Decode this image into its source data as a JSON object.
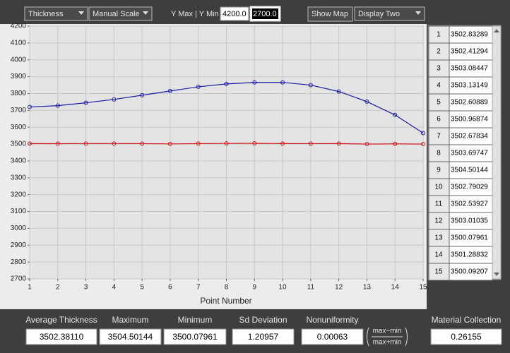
{
  "toolbar": {
    "parameter": "Thickness",
    "scale_mode": "Manual Scale",
    "y_range_label": "Y Max | Y Min",
    "y_max": "4200.0",
    "y_min": "2700.0",
    "show_map": "Show Map",
    "display": "Display Two"
  },
  "chart_data": {
    "type": "line",
    "xlabel": "Point Number",
    "x": [
      1,
      2,
      3,
      4,
      5,
      6,
      7,
      8,
      9,
      10,
      11,
      12,
      13,
      14,
      15
    ],
    "xlim": [
      1,
      15
    ],
    "xticks": [
      1,
      2,
      3,
      4,
      5,
      6,
      7,
      8,
      9,
      10,
      11,
      12,
      13,
      14,
      15
    ],
    "ylim": [
      2700,
      4200
    ],
    "yticks": [
      2700,
      2800,
      2900,
      3000,
      3100,
      3200,
      3300,
      3400,
      3500,
      3600,
      3700,
      3800,
      3900,
      4000,
      4100,
      4200
    ],
    "grid": true,
    "series": [
      {
        "color": "#1a1aa8",
        "values": [
          3720,
          3728,
          3745,
          3765,
          3790,
          3815,
          3840,
          3857,
          3866,
          3866,
          3850,
          3812,
          3752,
          3673,
          3565
        ]
      },
      {
        "color": "#d01818",
        "values": [
          3502.83289,
          3502.41294,
          3503.08447,
          3503.13149,
          3502.60889,
          3500.96874,
          3502.67834,
          3503.69747,
          3504.50144,
          3502.79029,
          3502.53927,
          3503.01035,
          3500.07961,
          3501.28832,
          3500.09207
        ]
      }
    ]
  },
  "table": {
    "rows": [
      [
        "1",
        "3502.83289"
      ],
      [
        "2",
        "3502.41294"
      ],
      [
        "3",
        "3503.08447"
      ],
      [
        "4",
        "3503.13149"
      ],
      [
        "5",
        "3502.60889"
      ],
      [
        "6",
        "3500.96874"
      ],
      [
        "7",
        "3502.67834"
      ],
      [
        "8",
        "3503.69747"
      ],
      [
        "9",
        "3504.50144"
      ],
      [
        "10",
        "3502.79029"
      ],
      [
        "11",
        "3502.53927"
      ],
      [
        "12",
        "3503.01035"
      ],
      [
        "13",
        "3500.07961"
      ],
      [
        "14",
        "3501.28832"
      ],
      [
        "15",
        "3500.09207"
      ]
    ]
  },
  "stats": [
    {
      "label": "Average Thickness",
      "value": "3502.38110"
    },
    {
      "label": "Maximum",
      "value": "3504.50144"
    },
    {
      "label": "Minimum",
      "value": "3500.07961"
    },
    {
      "label": "Sd Deviation",
      "value": "1.20957"
    },
    {
      "label": "Nonuniformity",
      "value": "0.00063"
    },
    {
      "label": "Material Collection",
      "value": "0.26155"
    }
  ],
  "formula": {
    "numerator": "max−min",
    "denominator": "max+min"
  }
}
